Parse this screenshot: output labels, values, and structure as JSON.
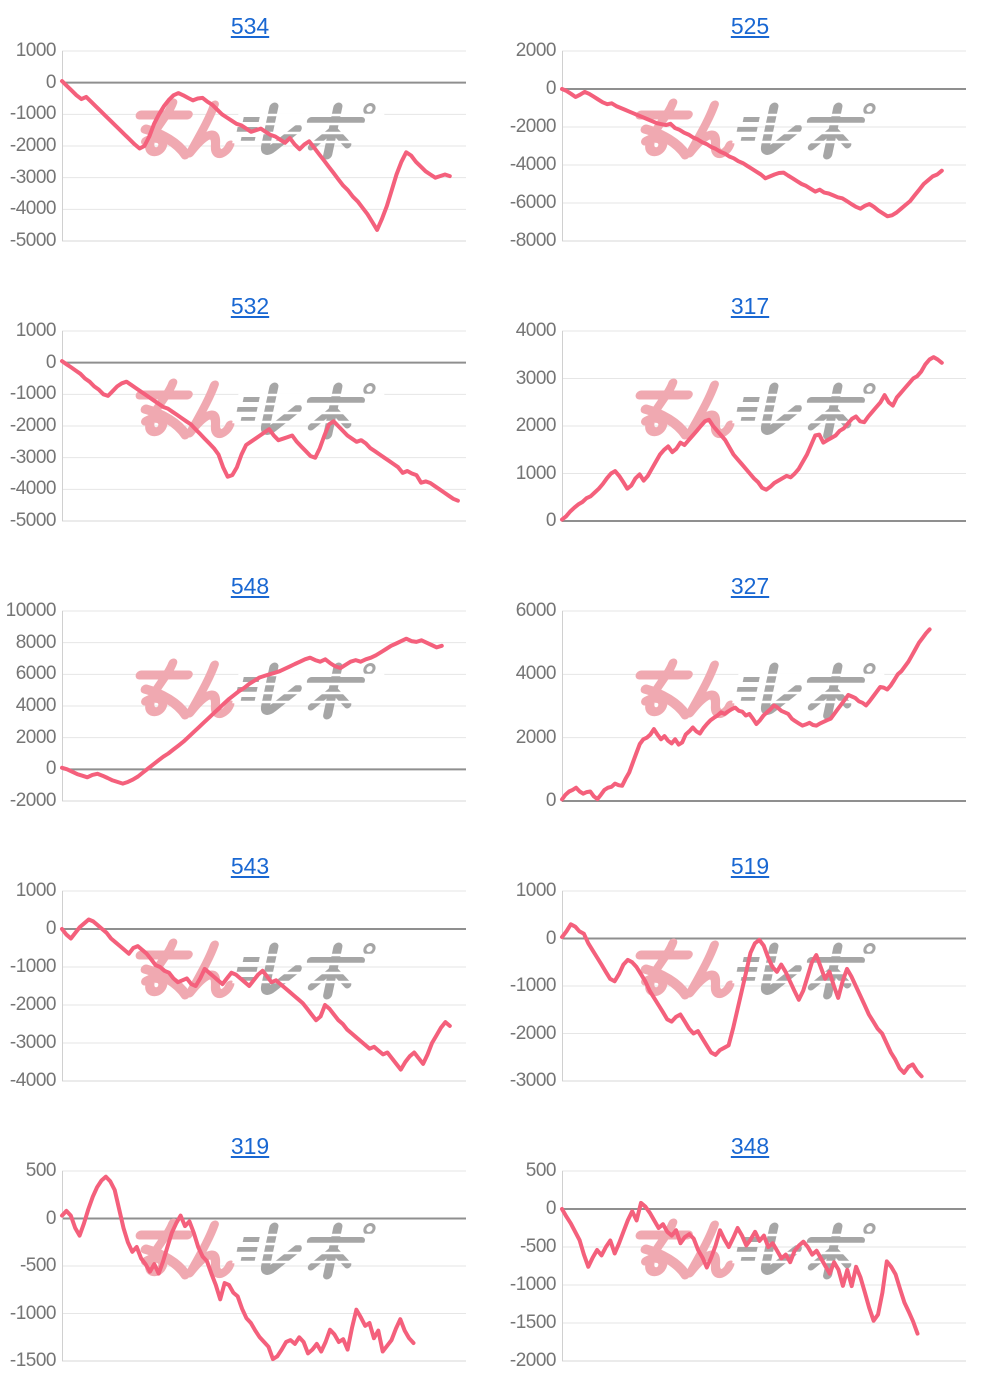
{
  "page": {
    "background": "#ffffff"
  },
  "watermark": {
    "text": "みんレポ",
    "pink_part": "みん",
    "gray_part": "レポ"
  },
  "style": {
    "line_color": "#f4607c",
    "title_link_color": "#1967d2",
    "tick_label_color": "#757575",
    "grid_color": "#e6e6e6",
    "bottom_grid_color": "#d7d7d7",
    "zero_line_color": "#8f8f8f",
    "axis_line_color": "#d0d0d0",
    "wm_pink": "#f0a9b1",
    "wm_gray": "#a6a6a6"
  },
  "chart_data": [
    {
      "type": "line",
      "title": "534",
      "legend": "none",
      "grid": true,
      "xlabel": "",
      "ylabel": "",
      "x_ticks_shown": false,
      "y_ticks": [
        1000,
        0,
        -1000,
        -2000,
        -3000,
        -4000,
        -5000
      ],
      "ylim": [
        -5000,
        1000
      ],
      "x_span": 0.96,
      "values": [
        50,
        -100,
        -250,
        -400,
        -520,
        -450,
        -600,
        -750,
        -900,
        -1050,
        -1200,
        -1350,
        -1500,
        -1650,
        -1800,
        -1950,
        -2080,
        -2000,
        -1700,
        -1300,
        -1000,
        -750,
        -550,
        -400,
        -330,
        -400,
        -480,
        -560,
        -500,
        -480,
        -600,
        -700,
        -850,
        -1000,
        -1100,
        -1200,
        -1300,
        -1350,
        -1450,
        -1550,
        -1500,
        -1450,
        -1550,
        -1650,
        -1700,
        -1800,
        -1900,
        -1750,
        -1950,
        -2100,
        -1950,
        -1850,
        -2050,
        -2250,
        -2450,
        -2650,
        -2850,
        -3050,
        -3250,
        -3400,
        -3600,
        -3750,
        -3950,
        -4150,
        -4400,
        -4650,
        -4300,
        -3900,
        -3400,
        -2900,
        -2500,
        -2200,
        -2300,
        -2500,
        -2650,
        -2800,
        -2900,
        -3000,
        -2950,
        -2900,
        -2950
      ]
    },
    {
      "type": "line",
      "title": "525",
      "legend": "none",
      "grid": true,
      "xlabel": "",
      "ylabel": "",
      "x_ticks_shown": false,
      "y_ticks": [
        2000,
        0,
        -2000,
        -4000,
        -6000,
        -8000
      ],
      "ylim": [
        -8000,
        2000
      ],
      "x_span": 0.94,
      "values": [
        0,
        -100,
        -250,
        -420,
        -300,
        -150,
        -250,
        -400,
        -550,
        -700,
        -800,
        -750,
        -900,
        -1000,
        -1100,
        -1200,
        -1300,
        -1400,
        -1500,
        -1600,
        -1700,
        -1800,
        -1850,
        -1900,
        -1830,
        -2050,
        -2150,
        -2300,
        -2400,
        -2550,
        -2650,
        -2800,
        -2900,
        -3050,
        -3150,
        -3300,
        -3400,
        -3550,
        -3650,
        -3800,
        -3900,
        -4050,
        -4200,
        -4350,
        -4500,
        -4700,
        -4600,
        -4500,
        -4420,
        -4400,
        -4550,
        -4700,
        -4850,
        -5000,
        -5100,
        -5250,
        -5400,
        -5300,
        -5450,
        -5500,
        -5600,
        -5700,
        -5750,
        -5900,
        -6050,
        -6200,
        -6300,
        -6150,
        -6050,
        -6200,
        -6400,
        -6550,
        -6700,
        -6650,
        -6500,
        -6300,
        -6100,
        -5900,
        -5600,
        -5300,
        -5000,
        -4800,
        -4600,
        -4500,
        -4300
      ]
    },
    {
      "type": "line",
      "title": "532",
      "legend": "none",
      "grid": true,
      "xlabel": "",
      "ylabel": "",
      "x_ticks_shown": false,
      "y_ticks": [
        1000,
        0,
        -1000,
        -2000,
        -3000,
        -4000,
        -5000
      ],
      "ylim": [
        -5000,
        1000
      ],
      "x_span": 0.98,
      "values": [
        50,
        -50,
        -150,
        -250,
        -350,
        -500,
        -600,
        -750,
        -850,
        -1000,
        -1050,
        -900,
        -750,
        -650,
        -600,
        -700,
        -800,
        -900,
        -1000,
        -1100,
        -1200,
        -1300,
        -1400,
        -1450,
        -1550,
        -1650,
        -1750,
        -1850,
        -1950,
        -2100,
        -2250,
        -2400,
        -2550,
        -2700,
        -2900,
        -3300,
        -3600,
        -3550,
        -3300,
        -2900,
        -2600,
        -2500,
        -2400,
        -2300,
        -2200,
        -2100,
        -2300,
        -2450,
        -2400,
        -2350,
        -2300,
        -2500,
        -2650,
        -2800,
        -2950,
        -3000,
        -2700,
        -2300,
        -1950,
        -1850,
        -2000,
        -2150,
        -2300,
        -2400,
        -2500,
        -2450,
        -2550,
        -2700,
        -2800,
        -2900,
        -3000,
        -3100,
        -3200,
        -3300,
        -3480,
        -3420,
        -3500,
        -3550,
        -3790,
        -3750,
        -3800,
        -3900,
        -4000,
        -4100,
        -4200,
        -4300,
        -4360
      ]
    },
    {
      "type": "line",
      "title": "317",
      "legend": "none",
      "grid": true,
      "xlabel": "",
      "ylabel": "",
      "x_ticks_shown": false,
      "y_ticks": [
        4000,
        3000,
        2000,
        1000,
        0
      ],
      "ylim": [
        0,
        4000
      ],
      "x_span": 0.94,
      "values": [
        30,
        100,
        200,
        280,
        350,
        400,
        480,
        520,
        600,
        680,
        780,
        900,
        1000,
        1050,
        950,
        820,
        680,
        750,
        900,
        980,
        850,
        950,
        1100,
        1250,
        1400,
        1500,
        1570,
        1450,
        1520,
        1650,
        1600,
        1700,
        1800,
        1900,
        2000,
        2100,
        2130,
        2000,
        1900,
        1800,
        1700,
        1550,
        1400,
        1300,
        1200,
        1100,
        1000,
        900,
        820,
        700,
        660,
        720,
        800,
        850,
        900,
        950,
        920,
        1000,
        1100,
        1250,
        1400,
        1600,
        1800,
        1820,
        1650,
        1700,
        1750,
        1800,
        1900,
        1950,
        2050,
        2150,
        2200,
        2100,
        2080,
        2200,
        2300,
        2400,
        2500,
        2650,
        2500,
        2430,
        2600,
        2700,
        2800,
        2900,
        3000,
        3050,
        3150,
        3300,
        3400,
        3450,
        3400,
        3330
      ]
    },
    {
      "type": "line",
      "title": "548",
      "legend": "none",
      "grid": true,
      "xlabel": "",
      "ylabel": "",
      "x_ticks_shown": false,
      "y_ticks": [
        10000,
        8000,
        6000,
        4000,
        2000,
        0,
        -2000
      ],
      "ylim": [
        -2000,
        10000
      ],
      "x_span": 0.94,
      "values": [
        100,
        0,
        -150,
        -300,
        -400,
        -500,
        -350,
        -280,
        -400,
        -550,
        -700,
        -800,
        -900,
        -800,
        -650,
        -450,
        -200,
        50,
        300,
        550,
        800,
        1000,
        1250,
        1500,
        1750,
        2050,
        2350,
        2650,
        2950,
        3250,
        3550,
        3850,
        4150,
        4450,
        4700,
        4950,
        5150,
        5400,
        5600,
        5800,
        5900,
        6000,
        6100,
        6200,
        6350,
        6500,
        6650,
        6800,
        6950,
        7050,
        6900,
        6800,
        6950,
        6700,
        6500,
        6400,
        6600,
        6800,
        6900,
        6800,
        6950,
        7050,
        7200,
        7400,
        7600,
        7800,
        7950,
        8100,
        8250,
        8100,
        8050,
        8150,
        8000,
        7850,
        7700,
        7800
      ]
    },
    {
      "type": "line",
      "title": "327",
      "legend": "none",
      "grid": true,
      "xlabel": "",
      "ylabel": "",
      "x_ticks_shown": false,
      "y_ticks": [
        6000,
        4000,
        2000,
        0
      ],
      "ylim": [
        0,
        6000
      ],
      "x_span": 0.91,
      "values": [
        50,
        200,
        300,
        350,
        420,
        300,
        230,
        280,
        300,
        150,
        60,
        200,
        350,
        420,
        450,
        550,
        500,
        480,
        700,
        900,
        1200,
        1500,
        1800,
        1950,
        2000,
        2100,
        2270,
        2100,
        1950,
        2050,
        1900,
        1820,
        1950,
        1780,
        1850,
        2100,
        2200,
        2320,
        2200,
        2130,
        2300,
        2430,
        2550,
        2630,
        2700,
        2800,
        2750,
        2830,
        2900,
        2950,
        2850,
        2820,
        2700,
        2750,
        2600,
        2430,
        2550,
        2700,
        2800,
        2900,
        3020,
        2950,
        2850,
        2800,
        2750,
        2600,
        2520,
        2450,
        2380,
        2420,
        2470,
        2400,
        2380,
        2450,
        2500,
        2550,
        2600,
        2750,
        2900,
        3050,
        3200,
        3350,
        3300,
        3250,
        3150,
        3100,
        3020,
        3150,
        3300,
        3450,
        3600,
        3580,
        3520,
        3650,
        3820,
        4000,
        4100,
        4250,
        4400,
        4600,
        4800,
        5000,
        5150,
        5300,
        5420
      ]
    },
    {
      "type": "line",
      "title": "543",
      "legend": "none",
      "grid": true,
      "xlabel": "",
      "ylabel": "",
      "x_ticks_shown": false,
      "y_ticks": [
        1000,
        0,
        -1000,
        -2000,
        -3000,
        -4000
      ],
      "ylim": [
        -4000,
        1000
      ],
      "x_span": 0.96,
      "values": [
        0,
        -150,
        -250,
        -100,
        50,
        150,
        250,
        200,
        100,
        0,
        -100,
        -250,
        -350,
        -450,
        -550,
        -650,
        -500,
        -450,
        -550,
        -650,
        -800,
        -950,
        -1000,
        -1100,
        -1150,
        -1300,
        -1400,
        -1350,
        -1300,
        -1450,
        -1500,
        -1300,
        -1050,
        -1150,
        -1250,
        -1350,
        -1450,
        -1300,
        -1150,
        -1200,
        -1300,
        -1400,
        -1500,
        -1350,
        -1200,
        -1100,
        -1250,
        -1400,
        -1350,
        -1450,
        -1550,
        -1650,
        -1750,
        -1850,
        -1950,
        -2100,
        -2250,
        -2400,
        -2300,
        -2000,
        -2100,
        -2250,
        -2400,
        -2500,
        -2650,
        -2750,
        -2850,
        -2950,
        -3050,
        -3150,
        -3100,
        -3200,
        -3300,
        -3250,
        -3400,
        -3550,
        -3700,
        -3500,
        -3350,
        -3250,
        -3400,
        -3550,
        -3300,
        -3000,
        -2800,
        -2600,
        -2450,
        -2550
      ]
    },
    {
      "type": "line",
      "title": "519",
      "legend": "none",
      "grid": true,
      "xlabel": "",
      "ylabel": "",
      "x_ticks_shown": false,
      "y_ticks": [
        1000,
        0,
        -1000,
        -2000,
        -3000
      ],
      "ylim": [
        -3000,
        1000
      ],
      "x_span": 0.89,
      "values": [
        30,
        150,
        300,
        250,
        150,
        100,
        -100,
        -250,
        -400,
        -550,
        -700,
        -850,
        -900,
        -750,
        -550,
        -450,
        -500,
        -600,
        -750,
        -900,
        -1100,
        -1250,
        -1400,
        -1550,
        -1700,
        -1750,
        -1650,
        -1600,
        -1750,
        -1900,
        -2000,
        -1950,
        -2100,
        -2250,
        -2400,
        -2450,
        -2350,
        -2300,
        -2250,
        -1900,
        -1500,
        -1100,
        -700,
        -300,
        -100,
        -30,
        -150,
        -400,
        -600,
        -700,
        -550,
        -700,
        -900,
        -1100,
        -1290,
        -1100,
        -800,
        -500,
        -350,
        -600,
        -850,
        -700,
        -1000,
        -1250,
        -900,
        -640,
        -800,
        -1000,
        -1200,
        -1400,
        -1600,
        -1750,
        -1900,
        -2000,
        -2200,
        -2400,
        -2550,
        -2730,
        -2830,
        -2700,
        -2650,
        -2800,
        -2900
      ]
    },
    {
      "type": "line",
      "title": "319",
      "legend": "none",
      "grid": true,
      "xlabel": "",
      "ylabel": "",
      "x_ticks_shown": false,
      "y_ticks": [
        500,
        0,
        -500,
        -1000,
        -1500
      ],
      "ylim": [
        -1500,
        500
      ],
      "x_span": 0.87,
      "values": [
        30,
        80,
        30,
        -100,
        -180,
        -50,
        100,
        230,
        330,
        400,
        440,
        390,
        300,
        100,
        -100,
        -250,
        -350,
        -300,
        -420,
        -480,
        -560,
        -480,
        -580,
        -450,
        -300,
        -150,
        -50,
        30,
        -80,
        -30,
        -150,
        -300,
        -400,
        -450,
        -580,
        -700,
        -850,
        -680,
        -700,
        -780,
        -820,
        -950,
        -1050,
        -1100,
        -1180,
        -1250,
        -1300,
        -1350,
        -1480,
        -1450,
        -1380,
        -1300,
        -1280,
        -1320,
        -1250,
        -1300,
        -1420,
        -1380,
        -1320,
        -1400,
        -1300,
        -1170,
        -1220,
        -1300,
        -1270,
        -1380,
        -1150,
        -960,
        -1040,
        -1130,
        -1100,
        -1260,
        -1180,
        -1400,
        -1340,
        -1280,
        -1160,
        -1060,
        -1180,
        -1260,
        -1310
      ]
    },
    {
      "type": "line",
      "title": "348",
      "legend": "none",
      "grid": true,
      "xlabel": "",
      "ylabel": "",
      "x_ticks_shown": false,
      "y_ticks": [
        500,
        0,
        -500,
        -1000,
        -1500,
        -2000
      ],
      "ylim": [
        -2000,
        500
      ],
      "x_span": 0.88,
      "values": [
        0,
        -100,
        -190,
        -300,
        -410,
        -600,
        -760,
        -640,
        -540,
        -610,
        -500,
        -415,
        -585,
        -450,
        -300,
        -150,
        -30,
        -150,
        80,
        30,
        -50,
        -150,
        -250,
        -200,
        -300,
        -350,
        -280,
        -450,
        -370,
        -330,
        -390,
        -540,
        -640,
        -770,
        -640,
        -480,
        -280,
        -400,
        -500,
        -380,
        -250,
        -350,
        -480,
        -400,
        -300,
        -420,
        -350,
        -500,
        -450,
        -550,
        -650,
        -600,
        -700,
        -550,
        -480,
        -430,
        -500,
        -600,
        -550,
        -650,
        -750,
        -850,
        -700,
        -800,
        -1010,
        -800,
        -1015,
        -760,
        -900,
        -1100,
        -1300,
        -1470,
        -1390,
        -1100,
        -690,
        -760,
        -860,
        -1050,
        -1230,
        -1350,
        -1480,
        -1640
      ]
    }
  ]
}
